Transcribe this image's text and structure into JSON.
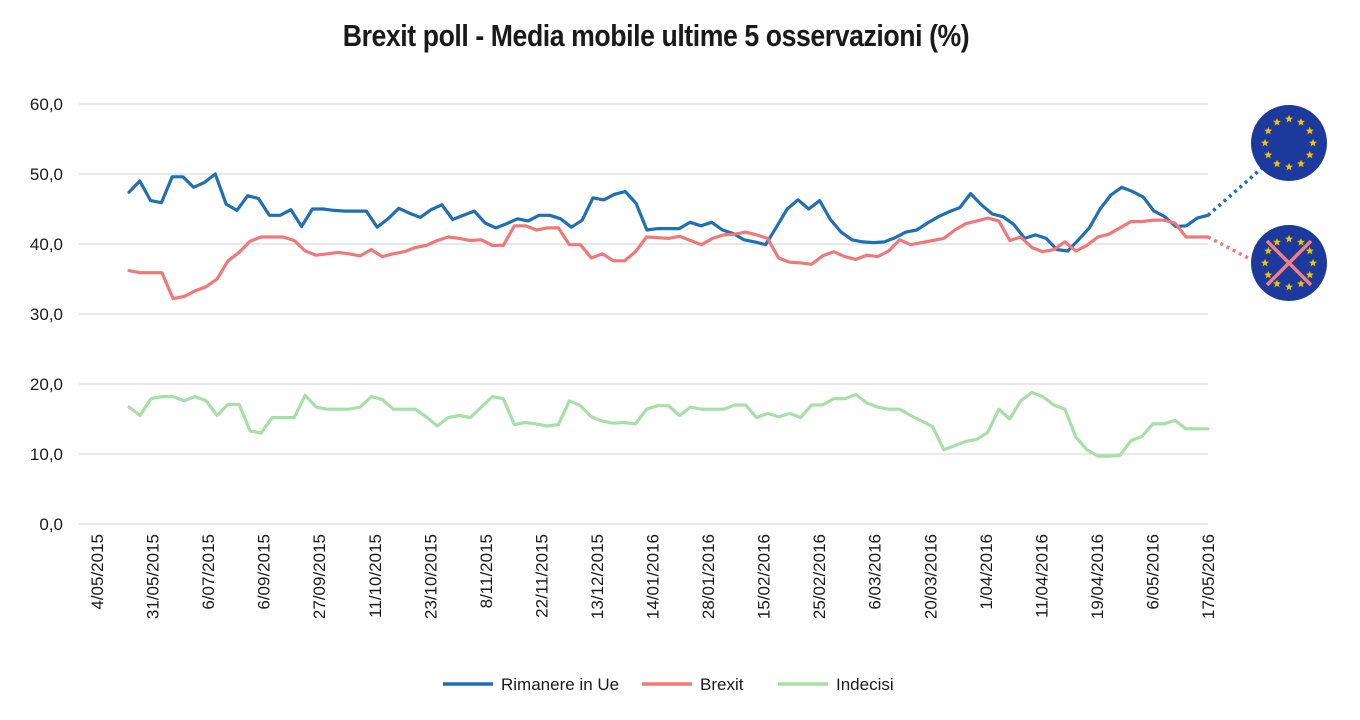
{
  "chart_data": {
    "type": "line",
    "title": "Brexit poll - Media mobile ultime 5 osservazioni (%)",
    "xlabel": "",
    "ylabel": "",
    "ylim": [
      0,
      60
    ],
    "y_ticks": [
      "0,0",
      "10,0",
      "20,0",
      "30,0",
      "40,0",
      "50,0",
      "60,0"
    ],
    "y_tick_values": [
      0,
      10,
      20,
      30,
      40,
      50,
      60
    ],
    "x_tick_labels": [
      "4/05/2015",
      "31/05/2015",
      "6/07/2015",
      "6/09/2015",
      "27/09/2015",
      "11/10/2015",
      "23/10/2015",
      "8/11/2015",
      "22/11/2015",
      "13/12/2015",
      "14/01/2016",
      "28/01/2016",
      "15/02/2016",
      "25/02/2016",
      "6/03/2016",
      "20/03/2016",
      "1/04/2016",
      "11/04/2016",
      "19/04/2016",
      "6/05/2016",
      "17/05/2016"
    ],
    "grid": "horizontal",
    "legend_position": "bottom",
    "series": [
      {
        "name": "Rimanere in Ue",
        "color": "#1f6fb4",
        "values": [
          47.4,
          49.0,
          46.2,
          45.9,
          49.6,
          49.6,
          48.1,
          48.8,
          50.0,
          45.7,
          44.8,
          46.9,
          46.5,
          44.1,
          44.1,
          44.9,
          42.5,
          45.0,
          45.0,
          44.8,
          44.7,
          44.7,
          44.7,
          42.4,
          43.6,
          45.1,
          44.4,
          43.8,
          44.9,
          45.6,
          43.5,
          44.1,
          44.7,
          43.0,
          42.3,
          42.9,
          43.6,
          43.3,
          44.1,
          44.1,
          43.6,
          42.4,
          43.4,
          46.6,
          46.3,
          47.1,
          47.5,
          45.8,
          42.0,
          42.2,
          42.2,
          42.2,
          43.1,
          42.6,
          43.1,
          42.0,
          41.5,
          40.6,
          40.3,
          39.9,
          42.4,
          45.0,
          46.3,
          45.0,
          46.2,
          43.5,
          41.7,
          40.6,
          40.3,
          40.2,
          40.3,
          40.9,
          41.7,
          42.0,
          43.0,
          43.9,
          44.6,
          45.2,
          47.2,
          45.6,
          44.3,
          43.9,
          42.8,
          40.8,
          41.3,
          40.8,
          39.2,
          39.0,
          40.6,
          42.3,
          45.0,
          47.0,
          48.1,
          47.5,
          46.7,
          44.7,
          43.9,
          42.5,
          42.6,
          43.7,
          44.1
        ]
      },
      {
        "name": "Brexit",
        "color": "#f07878",
        "values": [
          36.2,
          35.9,
          35.9,
          35.9,
          32.2,
          32.5,
          33.3,
          33.9,
          35.0,
          37.6,
          38.8,
          40.4,
          41.0,
          41.0,
          41.0,
          40.5,
          39.0,
          38.4,
          38.6,
          38.8,
          38.6,
          38.3,
          39.2,
          38.2,
          38.6,
          38.9,
          39.5,
          39.8,
          40.5,
          41.0,
          40.8,
          40.5,
          40.6,
          39.8,
          39.8,
          42.6,
          42.6,
          42.0,
          42.3,
          42.3,
          39.9,
          39.9,
          38.0,
          38.6,
          37.6,
          37.6,
          38.9,
          41.0,
          40.9,
          40.8,
          41.1,
          40.5,
          39.9,
          40.8,
          41.3,
          41.4,
          41.7,
          41.3,
          40.8,
          38.0,
          37.4,
          37.3,
          37.1,
          38.3,
          38.9,
          38.2,
          37.8,
          38.4,
          38.2,
          39.0,
          40.6,
          39.9,
          40.2,
          40.5,
          40.8,
          42.0,
          42.9,
          43.3,
          43.7,
          43.3,
          40.5,
          41.0,
          39.5,
          38.9,
          39.2,
          40.3,
          39.0,
          39.8,
          41.0,
          41.4,
          42.3,
          43.2,
          43.2,
          43.4,
          43.4,
          43.0,
          41.0,
          41.0,
          41.0
        ]
      },
      {
        "name": "Indecisi",
        "color": "#a6e0a6",
        "values": [
          16.7,
          15.5,
          17.9,
          18.2,
          18.2,
          17.6,
          18.2,
          17.6,
          15.5,
          17.1,
          17.1,
          13.3,
          13.0,
          15.2,
          15.2,
          15.2,
          18.4,
          16.7,
          16.4,
          16.4,
          16.4,
          16.7,
          18.2,
          17.8,
          16.4,
          16.4,
          16.4,
          15.3,
          14.0,
          15.2,
          15.5,
          15.2,
          16.7,
          18.2,
          17.9,
          14.2,
          14.5,
          14.3,
          14.0,
          14.2,
          17.6,
          16.9,
          15.3,
          14.7,
          14.4,
          14.5,
          14.3,
          16.4,
          16.9,
          16.9,
          15.5,
          16.7,
          16.4,
          16.4,
          16.4,
          17.0,
          17.0,
          15.2,
          15.8,
          15.3,
          15.8,
          15.2,
          17.0,
          17.0,
          17.9,
          17.9,
          18.5,
          17.3,
          16.7,
          16.4,
          16.4,
          15.5,
          14.7,
          13.9,
          10.6,
          11.2,
          11.8,
          12.1,
          13.1,
          16.4,
          15.0,
          17.6,
          18.8,
          18.2,
          17.0,
          16.4,
          12.4,
          10.6,
          9.7,
          9.7,
          9.8,
          11.9,
          12.5,
          14.3,
          14.3,
          14.8,
          13.6,
          13.6,
          13.6
        ]
      }
    ]
  },
  "legend": {
    "items": [
      {
        "label": "Rimanere in Ue"
      },
      {
        "label": "Brexit"
      },
      {
        "label": "Indecisi"
      }
    ]
  },
  "icons": {
    "remain": "eu-flag-icon",
    "leave": "eu-flag-crossed-icon",
    "flag_blue": "#1c3a9e",
    "star_color": "#f2c400",
    "cross_color": "#f08080"
  }
}
